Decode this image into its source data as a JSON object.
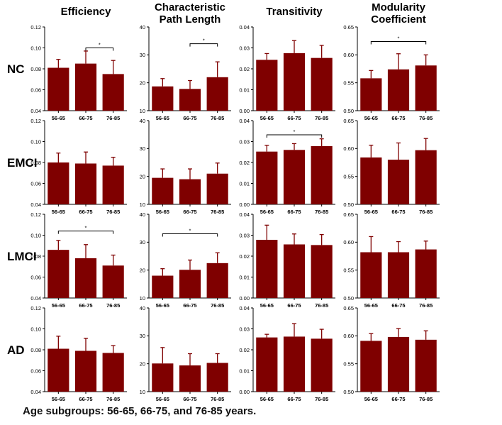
{
  "caption": "Age subgroups: 56-65, 66-75, and 76-85 years.",
  "bar_color": "#7f0000",
  "chart_data": {
    "type": "bar",
    "categories": [
      "56-65",
      "66-75",
      "76-85"
    ],
    "columns": [
      {
        "key": "eff",
        "title_lines": [
          "Efficiency"
        ],
        "ylim": [
          0.04,
          0.12
        ],
        "ticks": [
          "0.04",
          "0.06",
          "0.08",
          "0.10",
          "0.12"
        ]
      },
      {
        "key": "cpl",
        "title_lines": [
          "Characteristic",
          "Path Length"
        ],
        "ylim": [
          10,
          40
        ],
        "ticks": [
          "10",
          "20",
          "30",
          "40"
        ]
      },
      {
        "key": "tra",
        "title_lines": [
          "Transitivity"
        ],
        "ylim": [
          0,
          0.04
        ],
        "ticks": [
          "0.00",
          "0.01",
          "0.02",
          "0.03",
          "0.04"
        ]
      },
      {
        "key": "mod",
        "title_lines": [
          "Modularity",
          "Coefficient"
        ],
        "ylim": [
          0.5,
          0.65
        ],
        "ticks": [
          "0.50",
          "0.55",
          "0.60",
          "0.65"
        ]
      }
    ],
    "rows": [
      "NC",
      "EMCI",
      "LMCI",
      "AD"
    ],
    "panels": {
      "NC": {
        "eff": {
          "values": [
            0.081,
            0.085,
            0.075
          ],
          "errors": [
            0.008,
            0.012,
            0.013
          ],
          "sig": {
            "from": 1,
            "to": 2,
            "label": "*",
            "y": 0.1
          }
        },
        "cpl": {
          "values": [
            18.7,
            17.8,
            22.0
          ],
          "errors": [
            2.8,
            3.0,
            5.5
          ],
          "sig": {
            "from": 1,
            "to": 2,
            "label": "*",
            "y": 34.0
          }
        },
        "tra": {
          "values": [
            0.0243,
            0.0275,
            0.0252
          ],
          "errors": [
            0.003,
            0.006,
            0.006
          ]
        },
        "mod": {
          "values": [
            0.558,
            0.574,
            0.581
          ],
          "errors": [
            0.014,
            0.028,
            0.019
          ],
          "sig": {
            "from": 0,
            "to": 2,
            "label": "*",
            "y": 0.624
          }
        }
      },
      "EMCI": {
        "eff": {
          "values": [
            0.08,
            0.079,
            0.077
          ],
          "errors": [
            0.009,
            0.011,
            0.008
          ]
        },
        "cpl": {
          "values": [
            19.5,
            19.0,
            21.0
          ],
          "errors": [
            3.2,
            3.7,
            3.8
          ]
        },
        "tra": {
          "values": [
            0.0252,
            0.026,
            0.0278
          ],
          "errors": [
            0.003,
            0.003,
            0.0035
          ],
          "sig": {
            "from": 0,
            "to": 2,
            "label": "*",
            "y": 0.0332
          }
        },
        "mod": {
          "values": [
            0.584,
            0.58,
            0.597
          ],
          "errors": [
            0.022,
            0.03,
            0.021
          ]
        }
      },
      "LMCI": {
        "eff": {
          "values": [
            0.086,
            0.078,
            0.071
          ],
          "errors": [
            0.009,
            0.013,
            0.01
          ],
          "sig": {
            "from": 0,
            "to": 2,
            "label": "*",
            "y": 0.104
          }
        },
        "cpl": {
          "values": [
            18.0,
            20.1,
            22.5
          ],
          "errors": [
            2.5,
            3.5,
            3.7
          ],
          "sig": {
            "from": 0,
            "to": 2,
            "label": "*",
            "y": 33.0
          }
        },
        "tra": {
          "values": [
            0.0278,
            0.0256,
            0.0253
          ],
          "errors": [
            0.007,
            0.005,
            0.005
          ]
        },
        "mod": {
          "values": [
            0.582,
            0.582,
            0.587
          ],
          "errors": [
            0.028,
            0.019,
            0.015
          ]
        }
      },
      "AD": {
        "eff": {
          "values": [
            0.081,
            0.079,
            0.077
          ],
          "errors": [
            0.012,
            0.012,
            0.007
          ]
        },
        "cpl": {
          "values": [
            20.1,
            19.4,
            20.3
          ],
          "errors": [
            5.7,
            4.2,
            3.3
          ]
        },
        "tra": {
          "values": [
            0.0259,
            0.0263,
            0.0253
          ],
          "errors": [
            0.0015,
            0.0062,
            0.0045
          ]
        },
        "mod": {
          "values": [
            0.591,
            0.598,
            0.593
          ],
          "errors": [
            0.013,
            0.015,
            0.016
          ]
        }
      }
    }
  }
}
